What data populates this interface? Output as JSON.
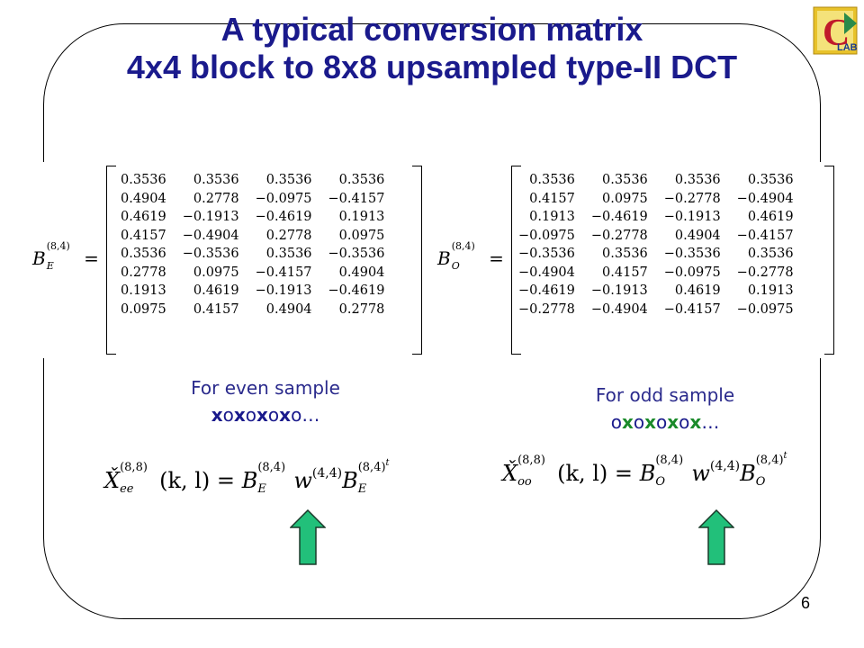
{
  "title": {
    "line1": "A typical conversion matrix",
    "line2": "4x4 block to 8x8 upsampled type-II DCT"
  },
  "logo": {
    "icon": "lab-logo-icon",
    "letter": "C",
    "text": "LAB"
  },
  "matrix_even": {
    "symbol": "B",
    "subscript": "E",
    "superscript": "(8,4)",
    "equals": "=",
    "rows": [
      [
        "0.3536",
        "0.3536",
        "0.3536",
        "0.3536"
      ],
      [
        "0.4904",
        "0.2778",
        "−0.0975",
        "−0.4157"
      ],
      [
        "0.4619",
        "−0.1913",
        "−0.4619",
        "0.1913"
      ],
      [
        "0.4157",
        "−0.4904",
        "0.2778",
        "0.0975"
      ],
      [
        "0.3536",
        "−0.3536",
        "0.3536",
        "−0.3536"
      ],
      [
        "0.2778",
        "0.0975",
        "−0.4157",
        "0.4904"
      ],
      [
        "0.1913",
        "0.4619",
        "−0.1913",
        "−0.4619"
      ],
      [
        "0.0975",
        "0.4157",
        "0.4904",
        "0.2778"
      ]
    ]
  },
  "matrix_odd": {
    "symbol": "B",
    "subscript": "O",
    "superscript": "(8,4)",
    "equals": "=",
    "rows": [
      [
        "0.3536",
        "0.3536",
        "0.3536",
        "0.3536"
      ],
      [
        "0.4157",
        "0.0975",
        "−0.2778",
        "−0.4904"
      ],
      [
        "0.1913",
        "−0.4619",
        "−0.1913",
        "0.4619"
      ],
      [
        "−0.0975",
        "−0.2778",
        "0.4904",
        "−0.4157"
      ],
      [
        "−0.3536",
        "0.3536",
        "−0.3536",
        "0.3536"
      ],
      [
        "−0.4904",
        "0.4157",
        "−0.0975",
        "−0.2778"
      ],
      [
        "−0.4619",
        "−0.1913",
        "0.4619",
        "0.1913"
      ],
      [
        "−0.2778",
        "−0.4904",
        "−0.4157",
        "−0.0975"
      ]
    ]
  },
  "caption_even": {
    "label": "For even sample",
    "sequence": [
      "x",
      "o",
      "x",
      "o",
      "x",
      "o",
      "x",
      "o",
      "…"
    ]
  },
  "caption_odd": {
    "label": "For odd sample",
    "sequence": [
      "o",
      "x",
      "o",
      "x",
      "o",
      "x",
      "o",
      "x",
      "…"
    ]
  },
  "formula_even": {
    "lhs": "X̌",
    "lhs_sub": "ee",
    "lhs_sup": "(8,8)",
    "args": "(k, l) =",
    "b": "B",
    "b_sub": "E",
    "b_sup": "(8,4)",
    "w": "w",
    "w_sup": "(4,4)",
    "b2": "B",
    "b2_sub": "E",
    "b2_sup": "(8,4)",
    "transpose": "t"
  },
  "formula_odd": {
    "lhs": "X̌",
    "lhs_sub": "oo",
    "lhs_sup": "(8,8)",
    "args": "(k, l) =",
    "b": "B",
    "b_sub": "O",
    "b_sup": "(8,4)",
    "w": "w",
    "w_sup": "(4,4)",
    "b2": "B",
    "b2_sub": "O",
    "b2_sup": "(8,4)",
    "transpose": "t"
  },
  "arrows": {
    "icon": "up-arrow-icon",
    "color": "#22c07a",
    "outline": "#1a3a2a"
  },
  "page_number": "6"
}
